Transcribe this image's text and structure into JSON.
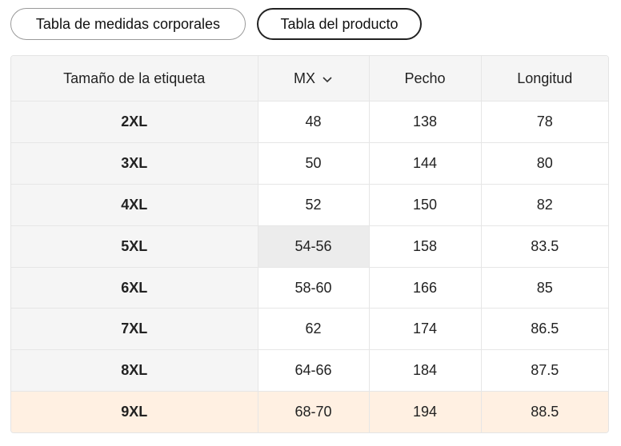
{
  "tabs": [
    "Tabla de medidas corporales",
    "Tabla del producto"
  ],
  "table": {
    "headers": [
      "Tamaño de la etiqueta",
      "MX",
      "Pecho",
      "Longitud"
    ],
    "rows": [
      [
        "2XL",
        "48",
        "138",
        "78"
      ],
      [
        "3XL",
        "50",
        "144",
        "80"
      ],
      [
        "4XL",
        "52",
        "150",
        "82"
      ],
      [
        "5XL",
        "54-56",
        "158",
        "83.5"
      ],
      [
        "6XL",
        "58-60",
        "166",
        "85"
      ],
      [
        "7XL",
        "62",
        "174",
        "86.5"
      ],
      [
        "8XL",
        "64-66",
        "184",
        "87.5"
      ],
      [
        "9XL",
        "68-70",
        "194",
        "88.5"
      ]
    ]
  }
}
